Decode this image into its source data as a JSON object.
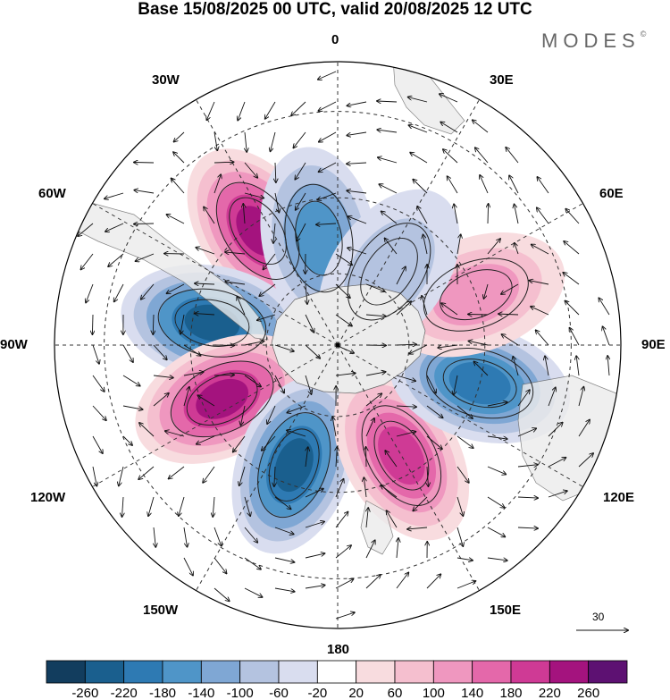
{
  "title": "Base 15/08/2025 00 UTC, valid 20/08/2025 12 UTC",
  "brand": {
    "name": "MODES",
    "mark": "©"
  },
  "longitude_labels": [
    "0",
    "30E",
    "60E",
    "90E",
    "120E",
    "150E",
    "180",
    "150W",
    "120W",
    "90W",
    "60W",
    "30W"
  ],
  "vector_scale": {
    "value": "30"
  },
  "colors": {
    "land": "#ececec",
    "grid": "#333333",
    "blue": [
      "#123d5e",
      "#1a5f8e",
      "#2e7ab3",
      "#4f95c8",
      "#7fa7d4",
      "#b4c3e0",
      "#d9ddef"
    ],
    "white": "#ffffff",
    "red": [
      "#f8dcdf",
      "#f5bfcf",
      "#ef97bf",
      "#e468aa",
      "#cf3a95",
      "#a4137e",
      "#5d1172"
    ]
  },
  "chart_data": {
    "type": "polar_stereographic_map",
    "projection": "south polar stereographic",
    "variable": "geopotential height anomaly with wind vectors",
    "colorbar": {
      "levels": [
        -260,
        -220,
        -180,
        -140,
        -100,
        -60,
        -20,
        20,
        60,
        100,
        140,
        180,
        220,
        260
      ],
      "tick_labels": [
        "-260",
        "-220",
        "-180",
        "-140",
        "-100",
        "-60",
        "-20",
        "20",
        "60",
        "100",
        "140",
        "180",
        "220",
        "260"
      ],
      "colors": [
        "#123d5e",
        "#1a5f8e",
        "#2e7ab3",
        "#4f95c8",
        "#7fa7d4",
        "#b4c3e0",
        "#d9ddef",
        "#ffffff",
        "#f8dcdf",
        "#f5bfcf",
        "#ef97bf",
        "#e468aa",
        "#cf3a95",
        "#a4137e",
        "#5d1172"
      ]
    },
    "anomaly_centers": [
      {
        "name": "positive-anomaly-south-atlantic",
        "lon": -35,
        "lat": -52,
        "peak": 230
      },
      {
        "name": "negative-anomaly-south-atlantic",
        "lon": -10,
        "lat": -60,
        "peak": -170
      },
      {
        "name": "negative-anomaly-drake-passage",
        "lon": -80,
        "lat": -55,
        "peak": -230
      },
      {
        "name": "positive-anomaly-south-pacific-east",
        "lon": -115,
        "lat": -55,
        "peak": 240
      },
      {
        "name": "negative-anomaly-south-pacific",
        "lon": -160,
        "lat": -55,
        "peak": -240
      },
      {
        "name": "positive-anomaly-ross-sea",
        "lon": 150,
        "lat": -55,
        "peak": 200
      },
      {
        "name": "negative-anomaly-south-indian",
        "lon": 105,
        "lat": -50,
        "peak": -210
      },
      {
        "name": "positive-anomaly-kerguelen",
        "lon": 70,
        "lat": -50,
        "peak": 120
      },
      {
        "name": "negative-anomaly-weak-indian",
        "lon": 35,
        "lat": -65,
        "peak": -90
      }
    ]
  }
}
